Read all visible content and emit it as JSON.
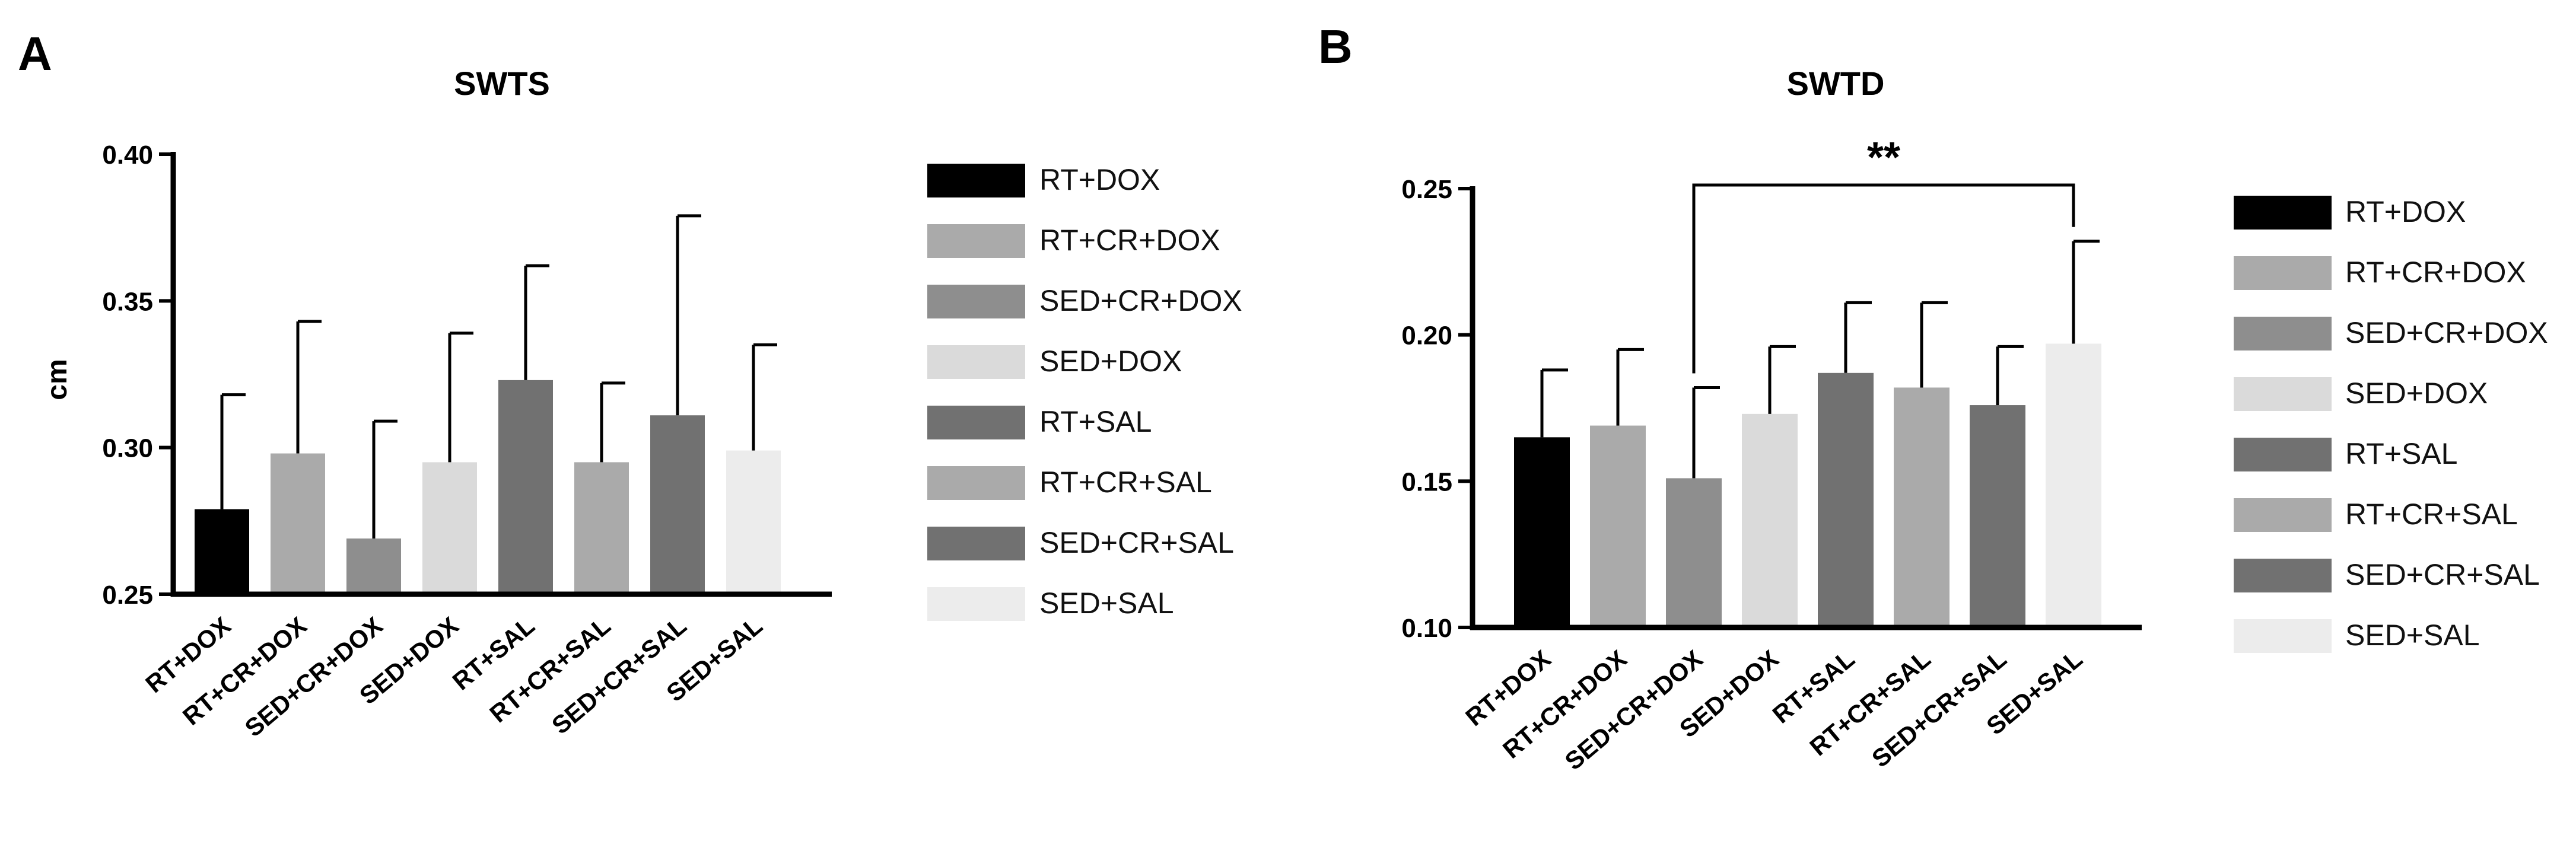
{
  "chart_data": [
    {
      "panel": "A",
      "type": "bar",
      "title": "SWTS",
      "xlabel": "",
      "ylabel": "cm",
      "ylim": [
        0.25,
        0.4
      ],
      "yticks": [
        "0.25",
        "0.30",
        "0.35",
        "0.40"
      ],
      "categories": [
        "RT+DOX",
        "RT+CR+DOX",
        "SED+CR+DOX",
        "SED+DOX",
        "RT+SAL",
        "RT+CR+SAL",
        "SED+CR+SAL",
        "SED+SAL"
      ],
      "values": [
        0.279,
        0.298,
        0.269,
        0.295,
        0.323,
        0.295,
        0.311,
        0.299
      ],
      "error_upper": [
        0.318,
        0.343,
        0.309,
        0.339,
        0.362,
        0.322,
        0.379,
        0.335
      ],
      "colors": [
        "#000000",
        "#aaaaaa",
        "#8e8e8e",
        "#dadada",
        "#717171",
        "#aaaaaa",
        "#717171",
        "#ececec"
      ],
      "legend": {
        "labels": [
          "RT+DOX",
          "RT+CR+DOX",
          "SED+CR+DOX",
          "SED+DOX",
          "RT+SAL",
          "RT+CR+SAL",
          "SED+CR+SAL",
          "SED+SAL"
        ],
        "colors": [
          "#000000",
          "#aaaaaa",
          "#8e8e8e",
          "#dadada",
          "#717171",
          "#aaaaaa",
          "#717171",
          "#ececec"
        ],
        "placement": "right"
      },
      "annotations": []
    },
    {
      "panel": "B",
      "type": "bar",
      "title": "SWTD",
      "xlabel": "",
      "ylabel": "",
      "ylim": [
        0.1,
        0.25
      ],
      "yticks": [
        "0.10",
        "0.15",
        "0.20",
        "0.25"
      ],
      "categories": [
        "RT+DOX",
        "RT+CR+DOX",
        "SED+CR+DOX",
        "SED+DOX",
        "RT+SAL",
        "RT+CR+SAL",
        "SED+CR+SAL",
        "SED+SAL"
      ],
      "values": [
        0.165,
        0.169,
        0.151,
        0.173,
        0.187,
        0.182,
        0.176,
        0.197
      ],
      "error_upper": [
        0.188,
        0.195,
        0.182,
        0.196,
        0.211,
        0.211,
        0.196,
        0.232
      ],
      "colors": [
        "#000000",
        "#aaaaaa",
        "#8e8e8e",
        "#dadada",
        "#717171",
        "#aaaaaa",
        "#717171",
        "#ececec"
      ],
      "legend": {
        "labels": [
          "RT+DOX",
          "RT+CR+DOX",
          "SED+CR+DOX",
          "SED+DOX",
          "RT+SAL",
          "RT+CR+SAL",
          "SED+CR+SAL",
          "SED+SAL"
        ],
        "colors": [
          "#000000",
          "#aaaaaa",
          "#8e8e8e",
          "#dadada",
          "#717171",
          "#aaaaaa",
          "#717171",
          "#ececec"
        ],
        "placement": "right"
      },
      "annotations": [
        {
          "type": "significance",
          "from": "SED+CR+DOX",
          "to": "SED+SAL",
          "label": "**"
        }
      ]
    }
  ]
}
